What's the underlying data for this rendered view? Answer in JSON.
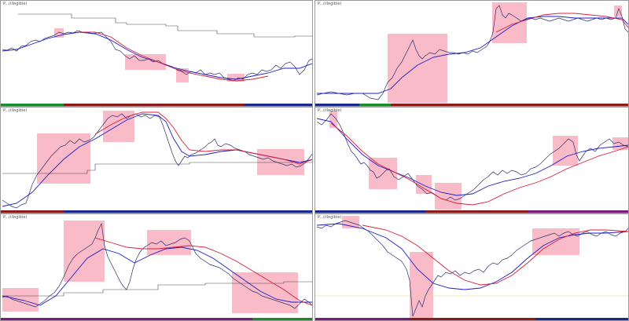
{
  "window": {
    "title": ""
  },
  "colors": {
    "price": "#2a2f6b",
    "fast_ma": "#1c1cc8",
    "slow_ma": "#d81e3c",
    "step": "#4a4a4a",
    "highlight": "#f7a4b5",
    "bar_green": "#1a8a2a",
    "bar_red": "#8b1a1a",
    "bar_blue": "#1a2a8b",
    "bar_purple": "#7a1a7a",
    "background": "#ffffff",
    "border": "#9a9a9a"
  },
  "panes": [
    {
      "id": "pane-1",
      "title": "P...(illegible)",
      "bar_scheme": [
        "green",
        "red",
        "blue"
      ]
    },
    {
      "id": "pane-2",
      "title": "P...(illegible)",
      "bar_scheme": [
        "blue",
        "green",
        "red"
      ]
    },
    {
      "id": "pane-3",
      "title": "P...(illegible)",
      "bar_scheme": [
        "red",
        "blue"
      ]
    },
    {
      "id": "pane-4",
      "title": "P...(illegible)",
      "bar_scheme": [
        "blue",
        "red",
        "purple"
      ]
    },
    {
      "id": "pane-5",
      "title": "P...(illegible)",
      "bar_scheme": [
        "purple",
        "green"
      ]
    },
    {
      "id": "pane-6",
      "title": "P...(illegible)",
      "bar_scheme": [
        "purple",
        "red",
        "blue"
      ]
    }
  ]
}
